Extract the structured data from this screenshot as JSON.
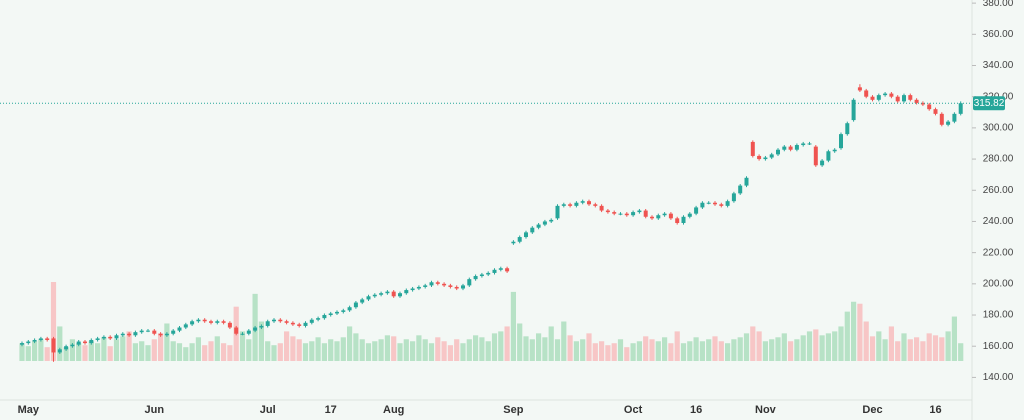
{
  "chart_data": {
    "type": "candlestick",
    "categories": [
      null,
      "May",
      null,
      null,
      null,
      null,
      null,
      null,
      null,
      null,
      null,
      null,
      null,
      null,
      null,
      null,
      null,
      null,
      null,
      null,
      null,
      "Jun",
      null,
      null,
      null,
      null,
      null,
      null,
      null,
      null,
      null,
      null,
      null,
      null,
      null,
      null,
      null,
      null,
      null,
      "Jul",
      null,
      null,
      null,
      null,
      null,
      null,
      null,
      null,
      null,
      "17",
      null,
      null,
      null,
      null,
      null,
      null,
      null,
      null,
      null,
      "Aug",
      null,
      null,
      null,
      null,
      null,
      null,
      null,
      null,
      null,
      null,
      null,
      null,
      null,
      null,
      null,
      null,
      null,
      null,
      "Sep",
      null,
      null,
      null,
      null,
      null,
      null,
      null,
      null,
      null,
      null,
      null,
      null,
      null,
      null,
      null,
      null,
      null,
      null,
      "Oct",
      null,
      null,
      null,
      null,
      null,
      null,
      null,
      null,
      null,
      "16",
      null,
      null,
      null,
      null,
      null,
      null,
      null,
      null,
      null,
      null,
      "Nov",
      null,
      null,
      null,
      null,
      null,
      null,
      null,
      null,
      null,
      null,
      null,
      null,
      null,
      null,
      null,
      null,
      "Dec",
      null,
      null,
      null,
      null,
      null,
      null,
      null,
      null,
      null,
      "16",
      null,
      null,
      null,
      null
    ],
    "open": [
      161,
      162,
      163,
      164,
      165,
      165,
      156,
      158,
      160,
      161,
      163,
      162,
      164,
      165,
      166,
      165,
      167,
      168,
      167,
      169,
      170,
      170,
      168,
      167,
      168,
      170,
      172,
      174,
      176,
      177,
      176,
      175,
      176,
      175,
      172,
      168,
      168,
      170,
      172,
      173,
      176,
      177,
      176,
      175,
      174,
      173,
      175,
      177,
      178,
      180,
      181,
      182,
      183,
      185,
      188,
      190,
      192,
      193,
      194,
      195,
      192,
      194,
      196,
      197,
      198,
      199,
      201,
      200,
      199,
      198,
      197,
      199,
      203,
      205,
      206,
      207,
      209,
      210,
      226,
      227,
      230,
      233,
      236,
      238,
      240,
      242,
      250,
      251,
      250,
      252,
      253,
      251,
      250,
      247,
      246,
      245,
      245,
      244,
      246,
      247,
      243,
      242,
      244,
      245,
      242,
      239,
      243,
      245,
      249,
      252,
      252,
      251,
      250,
      253,
      258,
      263,
      291,
      282,
      280,
      281,
      283,
      286,
      288,
      286,
      289,
      290,
      288,
      276,
      279,
      285,
      287,
      296,
      305,
      326,
      324,
      320,
      318,
      321,
      322,
      320,
      317,
      321,
      318,
      316,
      315,
      312,
      309,
      302,
      304,
      309
    ],
    "high": [
      163,
      164,
      165,
      166,
      166,
      166,
      159,
      161,
      162,
      164,
      164,
      165,
      166,
      167,
      167,
      168,
      169,
      169,
      170,
      171,
      171,
      171,
      169,
      169,
      171,
      173,
      175,
      177,
      178,
      178,
      177,
      177,
      177,
      176,
      173,
      169,
      171,
      173,
      174,
      177,
      178,
      178,
      177,
      176,
      175,
      176,
      178,
      179,
      181,
      182,
      183,
      184,
      186,
      189,
      191,
      193,
      194,
      195,
      196,
      196,
      195,
      197,
      198,
      199,
      200,
      202,
      202,
      201,
      200,
      199,
      200,
      204,
      206,
      207,
      208,
      210,
      211,
      211,
      228,
      231,
      234,
      237,
      239,
      241,
      242,
      251,
      252,
      252,
      253,
      254,
      254,
      252,
      251,
      248,
      247,
      246,
      246,
      247,
      248,
      248,
      244,
      245,
      246,
      246,
      243,
      244,
      246,
      250,
      253,
      253,
      253,
      252,
      254,
      259,
      264,
      269,
      292,
      283,
      282,
      284,
      287,
      289,
      289,
      290,
      291,
      291,
      289,
      280,
      286,
      287,
      297,
      304,
      319,
      328,
      325,
      321,
      322,
      323,
      323,
      321,
      322,
      322,
      319,
      317,
      316,
      313,
      310,
      305,
      310,
      317
    ],
    "low": [
      160,
      161,
      162,
      163,
      163,
      150,
      155,
      157,
      159,
      160,
      161,
      161,
      163,
      164,
      164,
      164,
      166,
      166,
      166,
      168,
      169,
      167,
      166,
      166,
      167,
      169,
      171,
      173,
      175,
      175,
      174,
      174,
      174,
      171,
      167,
      167,
      167,
      169,
      171,
      172,
      175,
      175,
      174,
      173,
      172,
      172,
      174,
      176,
      177,
      179,
      180,
      181,
      182,
      184,
      187,
      189,
      191,
      192,
      193,
      191,
      191,
      193,
      195,
      196,
      197,
      198,
      199,
      198,
      197,
      196,
      196,
      198,
      202,
      204,
      205,
      206,
      208,
      207,
      225,
      226,
      229,
      232,
      235,
      237,
      239,
      241,
      249,
      249,
      249,
      251,
      250,
      249,
      246,
      245,
      244,
      244,
      243,
      243,
      245,
      242,
      241,
      241,
      243,
      241,
      238,
      238,
      242,
      244,
      248,
      251,
      250,
      249,
      249,
      252,
      257,
      262,
      281,
      279,
      279,
      280,
      282,
      285,
      285,
      285,
      288,
      289,
      275,
      275,
      278,
      284,
      286,
      295,
      304,
      323,
      319,
      317,
      317,
      320,
      319,
      316,
      316,
      317,
      315,
      314,
      311,
      308,
      301,
      301,
      303,
      308
    ],
    "close": [
      162,
      163,
      164,
      165,
      164,
      156,
      158,
      160,
      161,
      163,
      162,
      164,
      165,
      166,
      165,
      167,
      168,
      167,
      169,
      170,
      170,
      168,
      167,
      168,
      170,
      172,
      174,
      176,
      177,
      176,
      175,
      176,
      175,
      172,
      168,
      168,
      170,
      172,
      173,
      176,
      177,
      176,
      175,
      174,
      173,
      175,
      177,
      178,
      180,
      181,
      182,
      183,
      185,
      188,
      190,
      192,
      193,
      194,
      195,
      192,
      194,
      196,
      197,
      198,
      199,
      201,
      200,
      199,
      198,
      197,
      199,
      203,
      205,
      206,
      207,
      209,
      210,
      208,
      227,
      230,
      233,
      236,
      238,
      240,
      241,
      250,
      251,
      250,
      252,
      253,
      251,
      250,
      247,
      246,
      245,
      245,
      244,
      246,
      247,
      243,
      242,
      244,
      245,
      242,
      239,
      243,
      245,
      249,
      252,
      252,
      251,
      250,
      253,
      258,
      263,
      268,
      282,
      280,
      281,
      283,
      286,
      288,
      286,
      289,
      290,
      290,
      276,
      279,
      285,
      286,
      296,
      303,
      318,
      324,
      320,
      318,
      321,
      322,
      320,
      317,
      321,
      318,
      316,
      315,
      312,
      309,
      302,
      304,
      309,
      315.82
    ],
    "volume": [
      18,
      15,
      20,
      22,
      14,
      80,
      35,
      14,
      22,
      18,
      16,
      20,
      18,
      24,
      15,
      22,
      25,
      30,
      18,
      20,
      16,
      22,
      28,
      38,
      20,
      18,
      14,
      18,
      24,
      16,
      20,
      25,
      18,
      16,
      55,
      30,
      22,
      68,
      40,
      20,
      16,
      18,
      30,
      25,
      22,
      18,
      20,
      24,
      18,
      22,
      20,
      24,
      35,
      28,
      22,
      18,
      20,
      22,
      26,
      25,
      18,
      22,
      20,
      26,
      22,
      18,
      24,
      20,
      16,
      22,
      18,
      22,
      26,
      24,
      20,
      28,
      30,
      35,
      70,
      38,
      25,
      22,
      28,
      24,
      35,
      22,
      40,
      26,
      20,
      22,
      28,
      18,
      20,
      16,
      18,
      22,
      14,
      18,
      20,
      25,
      22,
      20,
      24,
      18,
      30,
      18,
      20,
      24,
      20,
      22,
      25,
      20,
      18,
      22,
      24,
      28,
      35,
      30,
      20,
      22,
      24,
      28,
      20,
      22,
      26,
      30,
      32,
      26,
      28,
      30,
      35,
      50,
      60,
      58,
      40,
      25,
      30,
      22,
      35,
      20,
      28,
      22,
      24,
      20,
      28,
      26,
      24,
      30,
      45,
      18
    ],
    "ylim": [
      130,
      382
    ],
    "yticks": [
      {
        "value": 140,
        "label": "140.00"
      },
      {
        "value": 160,
        "label": "160.00"
      },
      {
        "value": 180,
        "label": "180.00"
      },
      {
        "value": 200,
        "label": "200.00"
      },
      {
        "value": 220,
        "label": "220.00"
      },
      {
        "value": 240,
        "label": "240.00"
      },
      {
        "value": 260,
        "label": "260.00"
      },
      {
        "value": 280,
        "label": "280.00"
      },
      {
        "value": 300,
        "label": "300.00"
      },
      {
        "value": 320,
        "label": "320.00"
      },
      {
        "value": 340,
        "label": "340.00"
      },
      {
        "value": 360,
        "label": "360.00"
      },
      {
        "value": 380,
        "label": "380.00"
      }
    ],
    "up_color": "#26a69a",
    "down_color": "#ef5350",
    "volume_up_color": "#b7e2c6",
    "volume_down_color": "#f7c6c6",
    "background": "#f3f8f5"
  }
}
